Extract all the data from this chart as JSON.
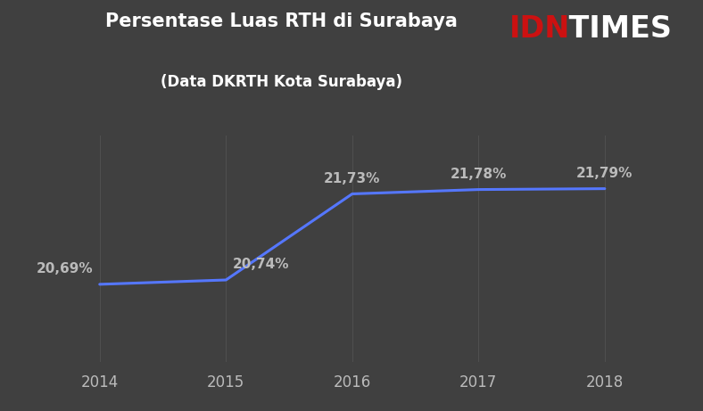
{
  "years": [
    2014,
    2015,
    2016,
    2017,
    2018
  ],
  "values": [
    20.69,
    20.74,
    21.73,
    21.78,
    21.79
  ],
  "labels": [
    "20,69%",
    "20,74%",
    "21,73%",
    "21,78%",
    "21,79%"
  ],
  "title_main": "Persentase Luas RTH di Surabaya",
  "title_sub": "(Data DKRTH Kota Surabaya)",
  "logo_idn": "IDN",
  "logo_times": " TIMES",
  "line_color": "#5577ff",
  "bg_color": "#404040",
  "plot_bg_color": "#404040",
  "grid_color": "#505050",
  "text_color": "#bbbbbb",
  "title_color": "#ffffff",
  "logo_idn_color": "#cc1111",
  "logo_times_color": "#ffffff",
  "ylim": [
    19.8,
    22.4
  ],
  "xlim": [
    2013.6,
    2018.5
  ],
  "label_fontsize": 11,
  "title_fontsize": 15,
  "subtitle_fontsize": 12,
  "tick_fontsize": 12,
  "logo_fontsize": 24
}
